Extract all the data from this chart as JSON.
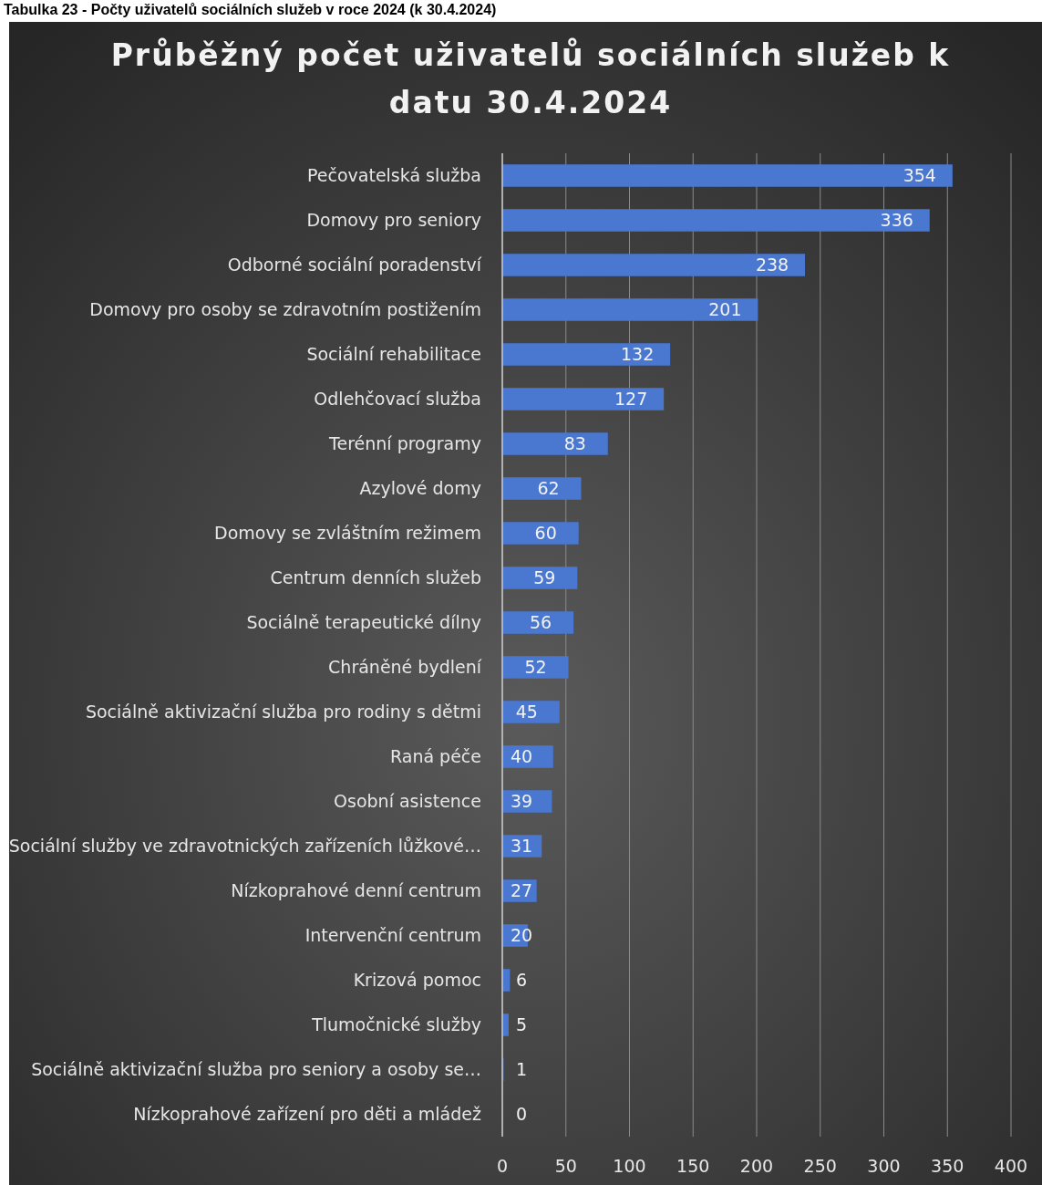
{
  "chart_data": {
    "type": "bar",
    "orientation": "horizontal",
    "title": "Průběžný počet uživatelů sociálních služeb k datu 30.4.2024",
    "annotations": [
      "Tabulka 23 - Počty uživatelů sociálních služeb v roce 2024 (k 30.4.2024)"
    ],
    "categories": [
      "Pečovatelská služba",
      "Domovy pro seniory",
      "Odborné sociální poradenství",
      "Domovy pro osoby se zdravotním postižením",
      "Sociální rehabilitace",
      "Odlehčovací služba",
      "Terénní programy",
      "Azylové domy",
      "Domovy se zvláštním režimem",
      "Centrum denních služeb",
      "Sociálně terapeutické dílny",
      "Chráněné bydlení",
      "Sociálně aktivizační služba pro rodiny s dětmi",
      "Raná péče",
      "Osobní asistence",
      "Sociální služby ve zdravotnických zařízeních lůžkové…",
      "Nízkoprahové denní centrum",
      "Intervenční centrum",
      "Krizová pomoc",
      "Tlumočnické služby",
      "Sociálně aktivizační služba pro seniory a osoby se…",
      "Nízkoprahové zařízení pro děti a mládež"
    ],
    "values": [
      354,
      336,
      238,
      201,
      132,
      127,
      83,
      62,
      60,
      59,
      56,
      52,
      45,
      40,
      39,
      31,
      27,
      20,
      6,
      5,
      1,
      0
    ],
    "color": "#4a78d0",
    "data_labels": true,
    "grid": "x",
    "xlim": [
      0,
      400
    ],
    "xticks": [
      0,
      50,
      100,
      150,
      200,
      250,
      300,
      350,
      400
    ]
  }
}
